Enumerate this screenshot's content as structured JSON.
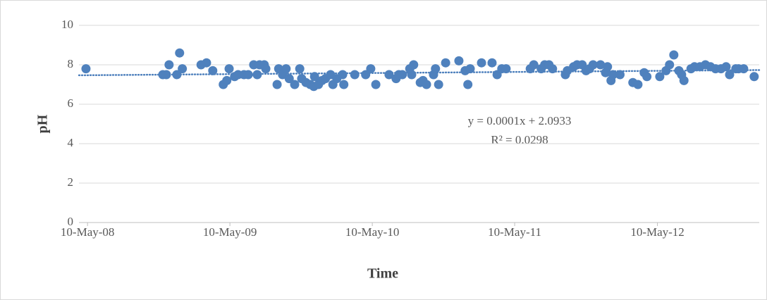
{
  "chart_data": {
    "type": "scatter",
    "y_label": "pH",
    "x_label": "Time",
    "trendline_equation": "y = 0.0001x + 2.0933",
    "trendline_r2": "R² = 0.0298",
    "color": "#4f81bd",
    "trendline": true,
    "grid": true,
    "xlim": [
      39556,
      41300
    ],
    "ylim": [
      0,
      10
    ],
    "xticks": [
      {
        "value": 39578,
        "label": "10-May-08"
      },
      {
        "value": 39943,
        "label": "10-May-09"
      },
      {
        "value": 40308,
        "label": "10-May-10"
      },
      {
        "value": 40673,
        "label": "10-May-11"
      },
      {
        "value": 41039,
        "label": "10-May-12"
      }
    ],
    "yticks": [
      0,
      2,
      4,
      6,
      8,
      10
    ],
    "x": [
      39574,
      39771,
      39780,
      39787,
      39807,
      39814,
      39821,
      39869,
      39883,
      39899,
      39926,
      39935,
      39941,
      39955,
      39964,
      39979,
      39990,
      40004,
      40013,
      40019,
      40031,
      40035,
      40064,
      40068,
      40078,
      40087,
      40095,
      40109,
      40122,
      40127,
      40138,
      40149,
      40158,
      40160,
      40170,
      40179,
      40188,
      40201,
      40207,
      40217,
      40232,
      40235,
      40263,
      40291,
      40304,
      40317,
      40351,
      40369,
      40376,
      40385,
      40404,
      40409,
      40414,
      40431,
      40438,
      40447,
      40465,
      40470,
      40478,
      40496,
      40530,
      40546,
      40553,
      40559,
      40588,
      40615,
      40628,
      40640,
      40651,
      40713,
      40722,
      40741,
      40750,
      40761,
      40770,
      40803,
      40808,
      40824,
      40833,
      40846,
      40856,
      40865,
      40874,
      40893,
      40906,
      40911,
      40920,
      40925,
      40943,
      40976,
      40989,
      41005,
      41012,
      41045,
      41061,
      41070,
      41081,
      41094,
      41101,
      41107,
      41125,
      41134,
      41148,
      41162,
      41175,
      41188,
      41202,
      41215,
      41224,
      41240,
      41247,
      41260,
      41287
    ],
    "values": [
      7.8,
      7.5,
      7.5,
      8.0,
      7.5,
      8.6,
      7.8,
      8.0,
      8.1,
      7.7,
      7.0,
      7.2,
      7.8,
      7.4,
      7.5,
      7.5,
      7.5,
      8.0,
      7.5,
      8.0,
      8.0,
      7.8,
      7.0,
      7.8,
      7.5,
      7.8,
      7.3,
      7.0,
      7.8,
      7.3,
      7.1,
      7.0,
      6.9,
      7.4,
      7.0,
      7.2,
      7.3,
      7.5,
      7.0,
      7.3,
      7.5,
      7.0,
      7.5,
      7.5,
      7.8,
      7.0,
      7.5,
      7.3,
      7.5,
      7.5,
      7.8,
      7.5,
      8.0,
      7.1,
      7.2,
      7.0,
      7.5,
      7.8,
      7.0,
      8.1,
      8.2,
      7.7,
      7.0,
      7.8,
      8.1,
      8.1,
      7.5,
      7.8,
      7.8,
      7.8,
      8.0,
      7.8,
      8.0,
      8.0,
      7.8,
      7.5,
      7.7,
      7.9,
      8.0,
      8.0,
      7.7,
      7.8,
      8.0,
      8.0,
      7.6,
      7.9,
      7.2,
      7.5,
      7.5,
      7.1,
      7.0,
      7.6,
      7.4,
      7.4,
      7.7,
      8.0,
      8.5,
      7.7,
      7.5,
      7.2,
      7.8,
      7.9,
      7.9,
      8.0,
      7.9,
      7.8,
      7.8,
      7.9,
      7.5,
      7.8,
      7.8,
      7.8,
      7.4
    ]
  }
}
